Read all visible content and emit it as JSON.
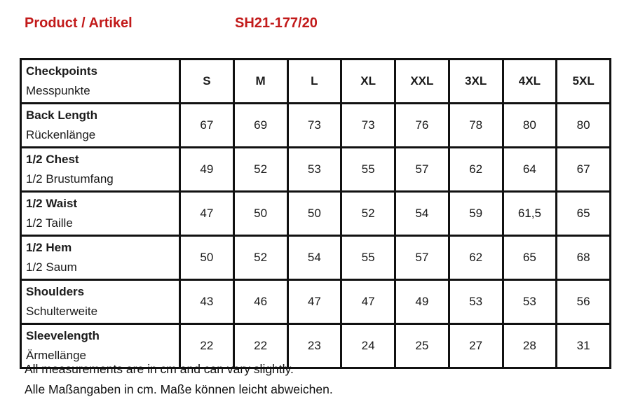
{
  "header": {
    "title_label": "Product / Artikel",
    "product_code": "SH21-177/20",
    "accent_color": "#c21a1a"
  },
  "table": {
    "header_en": "Checkpoints",
    "header_de": "Messpunkte",
    "sizes": [
      "S",
      "M",
      "L",
      "XL",
      "XXL",
      "3XL",
      "4XL",
      "5XL"
    ],
    "rows": [
      {
        "en": "Back Length",
        "de": "Rückenlänge",
        "values": [
          "67",
          "69",
          "73",
          "73",
          "76",
          "78",
          "80",
          "80"
        ]
      },
      {
        "en": "1/2 Chest",
        "de": "1/2 Brustumfang",
        "values": [
          "49",
          "52",
          "53",
          "55",
          "57",
          "62",
          "64",
          "67"
        ]
      },
      {
        "en": "1/2 Waist",
        "de": "1/2 Taille",
        "values": [
          "47",
          "50",
          "50",
          "52",
          "54",
          "59",
          "61,5",
          "65"
        ]
      },
      {
        "en": "1/2 Hem",
        "de": "1/2 Saum",
        "values": [
          "50",
          "52",
          "54",
          "55",
          "57",
          "62",
          "65",
          "68"
        ]
      },
      {
        "en": "Shoulders",
        "de": "Schulterweite",
        "values": [
          "43",
          "46",
          "47",
          "47",
          "49",
          "53",
          "53",
          "56"
        ]
      },
      {
        "en": "Sleevelength",
        "de": "Ärmellänge",
        "values": [
          "22",
          "22",
          "23",
          "24",
          "25",
          "27",
          "28",
          "31"
        ]
      }
    ],
    "unit": "cm"
  },
  "footer": {
    "line1": "All measurements are in cm and can vary slightly.",
    "line2": "Alle Maßangaben in cm. Maße können leicht abweichen."
  }
}
